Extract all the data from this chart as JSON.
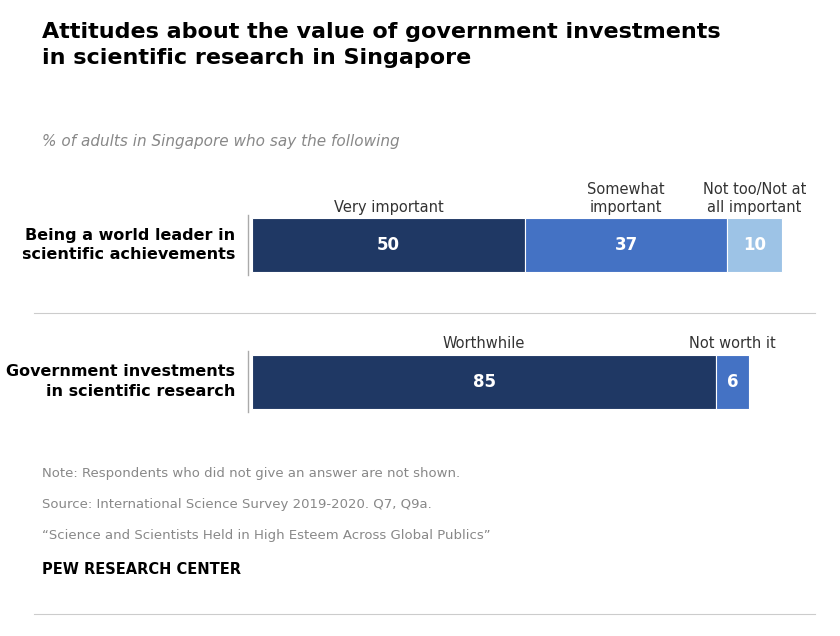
{
  "title": "Attitudes about the value of government investments\nin scientific research in Singapore",
  "subtitle": "% of adults in Singapore who say the following",
  "background_color": "#ffffff",
  "rows": [
    {
      "label": "Being a world leader in\nscientific achievements",
      "segments": [
        50,
        37,
        10
      ],
      "colors": [
        "#1f3864",
        "#4472c4",
        "#9dc3e6"
      ],
      "text_colors": [
        "white",
        "white",
        "white"
      ],
      "header_labels": [
        "Very important",
        "Somewhat\nimportant",
        "Not too/Not at\nall important"
      ]
    },
    {
      "label": "Government investments\nin scientific research",
      "segments": [
        85,
        6
      ],
      "colors": [
        "#1f3864",
        "#4472c4"
      ],
      "text_colors": [
        "white",
        "white"
      ],
      "header_labels": [
        "Worthwhile",
        "Not worth it"
      ]
    }
  ],
  "note_lines": [
    "Note: Respondents who did not give an answer are not shown.",
    "Source: International Science Survey 2019-2020. Q7, Q9a.",
    "“Science and Scientists Held in High Esteem Across Global Publics”"
  ],
  "source_label": "PEW RESEARCH CENTER",
  "title_fontsize": 16,
  "subtitle_fontsize": 11,
  "label_fontsize": 11.5,
  "header_fontsize": 10.5,
  "bar_value_fontsize": 12,
  "note_fontsize": 9.5
}
